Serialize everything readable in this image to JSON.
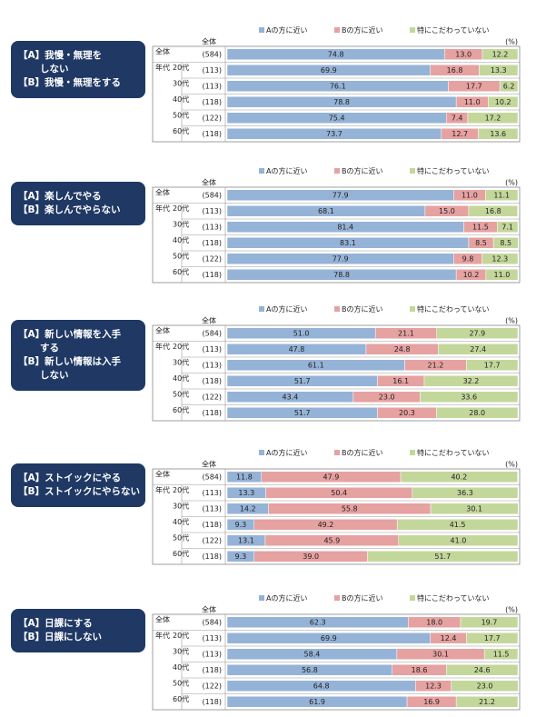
{
  "chart_data": [
    {
      "type": "bar",
      "question": [
        "【A】我慢・無理を",
        "しない",
        "【B】我慢・無理をする"
      ],
      "column_header": "全体",
      "unit": "(%)",
      "group_label": "年代",
      "categories": [
        "全体",
        "20代",
        "30代",
        "40代",
        "50代",
        "60代"
      ],
      "n_labels": [
        "(584)",
        "(113)",
        "(113)",
        "(118)",
        "(122)",
        "(118)"
      ],
      "xlim": [
        0,
        100
      ],
      "series": [
        {
          "name": "Aの方に近い",
          "color": "#95b3d7",
          "values": [
            74.8,
            69.9,
            76.1,
            78.8,
            75.4,
            73.7
          ],
          "value_labels": [
            "74.8",
            "69.9",
            "76.1",
            "78.8",
            "75.4",
            "73.7"
          ]
        },
        {
          "name": "Bの方に近い",
          "color": "#e6a1a1",
          "values": [
            13.0,
            16.8,
            17.7,
            11.0,
            7.4,
            12.7
          ],
          "value_labels": [
            "13.0",
            "16.8",
            "17.7",
            "11.0",
            "7.4",
            "12.7"
          ]
        },
        {
          "name": "特にこだわっていない",
          "color": "#c4d79b",
          "values": [
            12.2,
            13.3,
            6.2,
            10.2,
            17.2,
            13.6
          ],
          "value_labels": [
            "12.2",
            "13.3",
            "6.2",
            "10.2",
            "17.2",
            "13.6"
          ]
        }
      ]
    },
    {
      "type": "bar",
      "question": [
        "【A】楽しんでやる",
        "【B】楽しんでやらない"
      ],
      "column_header": "全体",
      "unit": "(%)",
      "group_label": "年代",
      "categories": [
        "全体",
        "20代",
        "30代",
        "40代",
        "50代",
        "60代"
      ],
      "n_labels": [
        "(584)",
        "(113)",
        "(113)",
        "(118)",
        "(122)",
        "(118)"
      ],
      "xlim": [
        0,
        100
      ],
      "series": [
        {
          "name": "Aの方に近い",
          "color": "#95b3d7",
          "values": [
            77.9,
            68.1,
            81.4,
            83.1,
            77.9,
            78.8
          ],
          "value_labels": [
            "77.9",
            "68.1",
            "81.4",
            "83.1",
            "77.9",
            "78.8"
          ]
        },
        {
          "name": "Bの方に近い",
          "color": "#e6a1a1",
          "values": [
            11.0,
            15.0,
            11.5,
            8.5,
            9.8,
            10.2
          ],
          "value_labels": [
            "11.0",
            "15.0",
            "11.5",
            "8.5",
            "9.8",
            "10.2"
          ]
        },
        {
          "name": "特にこだわっていない",
          "color": "#c4d79b",
          "values": [
            11.1,
            16.8,
            7.1,
            8.5,
            12.3,
            11.0
          ],
          "value_labels": [
            "11.1",
            "16.8",
            "7.1",
            "8.5",
            "12.3",
            "11.0"
          ]
        }
      ]
    },
    {
      "type": "bar",
      "question": [
        "【A】新しい情報を入手",
        "する",
        "【B】新しい情報は入手",
        "しない"
      ],
      "column_header": "全体",
      "unit": "(%)",
      "group_label": "年代",
      "categories": [
        "全体",
        "20代",
        "30代",
        "40代",
        "50代",
        "60代"
      ],
      "n_labels": [
        "(584)",
        "(113)",
        "(113)",
        "(118)",
        "(122)",
        "(118)"
      ],
      "xlim": [
        0,
        100
      ],
      "series": [
        {
          "name": "Aの方に近い",
          "color": "#95b3d7",
          "values": [
            51.0,
            47.8,
            61.1,
            51.7,
            43.4,
            51.7
          ],
          "value_labels": [
            "51.0",
            "47.8",
            "61.1",
            "51.7",
            "43.4",
            "51.7"
          ]
        },
        {
          "name": "Bの方に近い",
          "color": "#e6a1a1",
          "values": [
            21.1,
            24.8,
            21.2,
            16.1,
            23.0,
            20.3
          ],
          "value_labels": [
            "21.1",
            "24.8",
            "21.2",
            "16.1",
            "23.0",
            "20.3"
          ]
        },
        {
          "name": "特にこだわっていない",
          "color": "#c4d79b",
          "values": [
            27.9,
            27.4,
            17.7,
            32.2,
            33.6,
            28.0
          ],
          "value_labels": [
            "27.9",
            "27.4",
            "17.7",
            "32.2",
            "33.6",
            "28.0"
          ]
        }
      ]
    },
    {
      "type": "bar",
      "question": [
        "【A】ストイックにやる",
        "【B】ストイックにやらない"
      ],
      "column_header": "全体",
      "unit": "(%)",
      "group_label": "年代",
      "categories": [
        "全体",
        "20代",
        "30代",
        "40代",
        "50代",
        "60代"
      ],
      "n_labels": [
        "(584)",
        "(113)",
        "(113)",
        "(118)",
        "(122)",
        "(118)"
      ],
      "xlim": [
        0,
        100
      ],
      "series": [
        {
          "name": "Aの方に近い",
          "color": "#95b3d7",
          "values": [
            11.8,
            13.3,
            14.2,
            9.3,
            13.1,
            9.3
          ],
          "value_labels": [
            "11.8",
            "13.3",
            "14.2",
            "9.3",
            "13.1",
            "9.3"
          ]
        },
        {
          "name": "Bの方に近い",
          "color": "#e6a1a1",
          "values": [
            47.9,
            50.4,
            55.8,
            49.2,
            45.9,
            39.0
          ],
          "value_labels": [
            "47.9",
            "50.4",
            "55.8",
            "49.2",
            "45.9",
            "39.0"
          ]
        },
        {
          "name": "特にこだわっていない",
          "color": "#c4d79b",
          "values": [
            40.2,
            36.3,
            30.1,
            41.5,
            41.0,
            51.7
          ],
          "value_labels": [
            "40.2",
            "36.3",
            "30.1",
            "41.5",
            "41.0",
            "51.7"
          ]
        }
      ]
    },
    {
      "type": "bar",
      "question": [
        "【A】日課にする",
        "【B】日課にしない"
      ],
      "column_header": "全体",
      "unit": "(%)",
      "group_label": "年代",
      "categories": [
        "全体",
        "20代",
        "30代",
        "40代",
        "50代",
        "60代"
      ],
      "n_labels": [
        "(584)",
        "(113)",
        "(113)",
        "(118)",
        "(122)",
        "(118)"
      ],
      "xlim": [
        0,
        100
      ],
      "series": [
        {
          "name": "Aの方に近い",
          "color": "#95b3d7",
          "values": [
            62.3,
            69.9,
            58.4,
            56.8,
            64.8,
            61.9
          ],
          "value_labels": [
            "62.3",
            "69.9",
            "58.4",
            "56.8",
            "64.8",
            "61.9"
          ]
        },
        {
          "name": "Bの方に近い",
          "color": "#e6a1a1",
          "values": [
            18.0,
            12.4,
            30.1,
            18.6,
            12.3,
            16.9
          ],
          "value_labels": [
            "18.0",
            "12.4",
            "30.1",
            "18.6",
            "12.3",
            "16.9"
          ]
        },
        {
          "name": "特にこだわっていない",
          "color": "#c4d79b",
          "values": [
            19.7,
            17.7,
            11.5,
            24.6,
            23.0,
            21.2
          ],
          "value_labels": [
            "19.7",
            "17.7",
            "11.5",
            "24.6",
            "23.0",
            "21.2"
          ]
        }
      ]
    }
  ]
}
